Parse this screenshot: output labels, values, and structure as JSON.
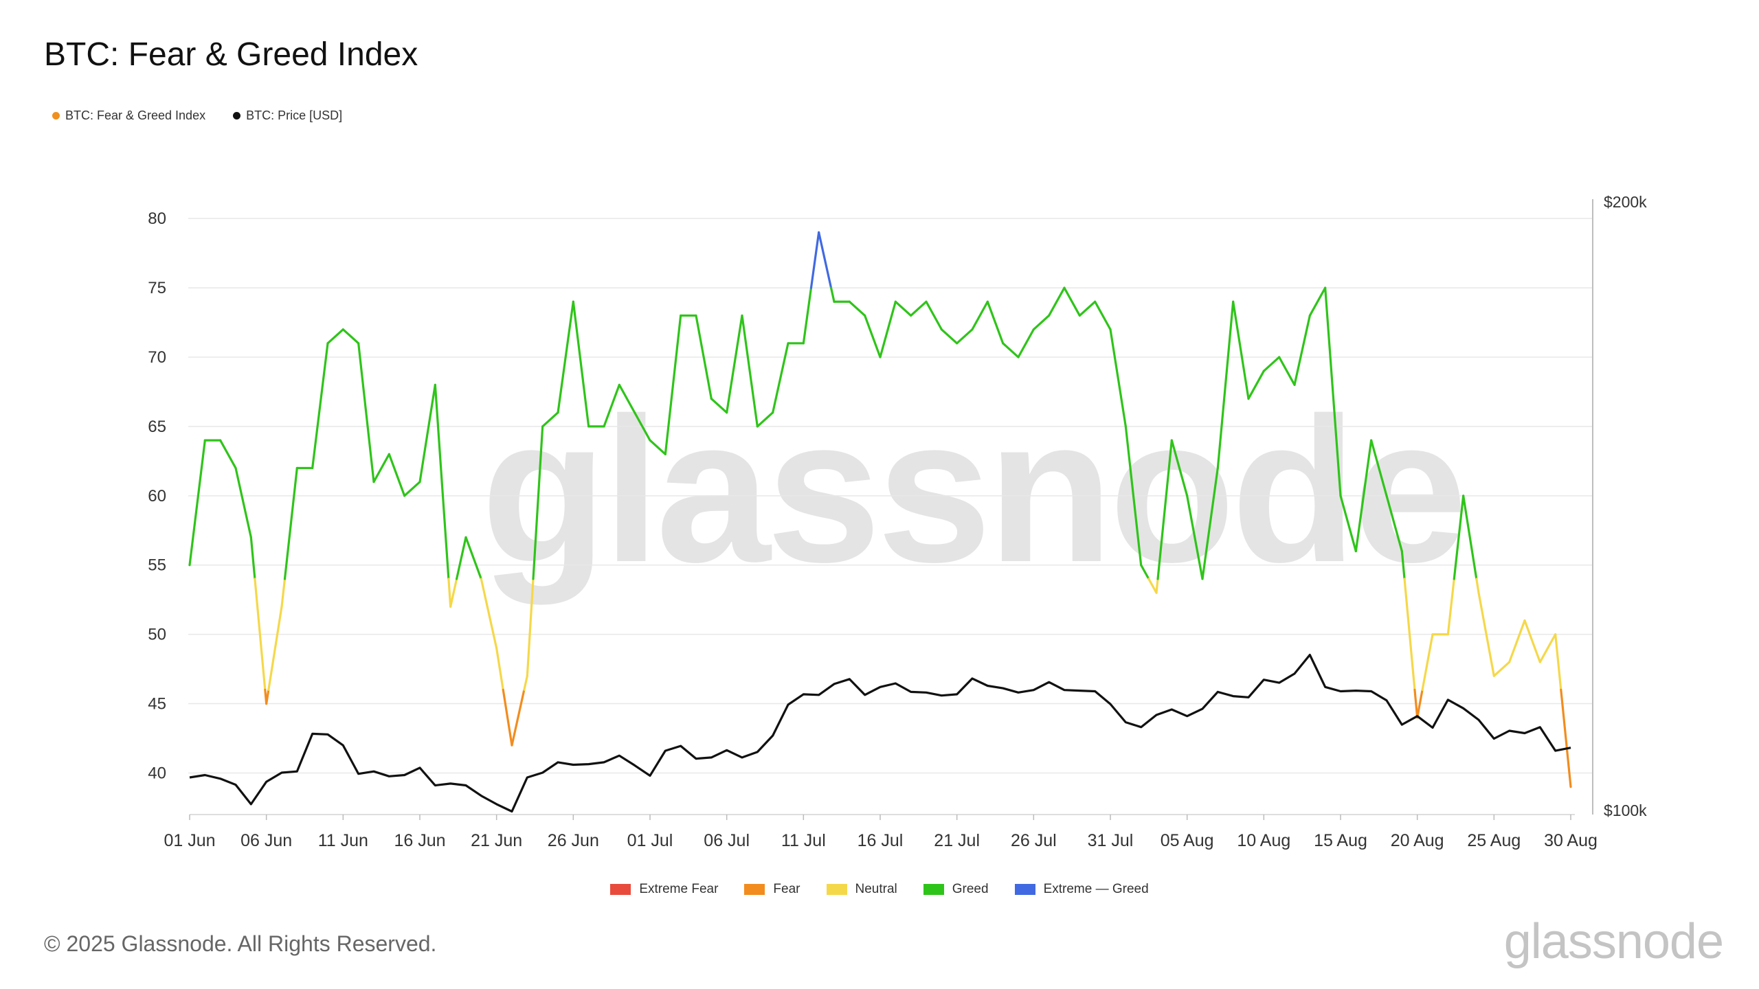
{
  "title": "BTC: Fear & Greed Index",
  "legend": [
    {
      "label": "BTC: Fear & Greed Index",
      "color": "#f0901e"
    },
    {
      "label": "BTC: Price [USD]",
      "color": "#111111"
    }
  ],
  "zone_legend": [
    {
      "label": "Extreme Fear",
      "color": "#e84b3c"
    },
    {
      "label": "Fear",
      "color": "#f28c1e"
    },
    {
      "label": "Neutral",
      "color": "#f5d84a"
    },
    {
      "label": "Greed",
      "color": "#2fc41a"
    },
    {
      "label": "Extreme — Greed",
      "color": "#4169e1"
    }
  ],
  "watermark": "glassnode",
  "copyright": "© 2025 Glassnode. All Rights Reserved.",
  "brand": "glassnode",
  "chart_data": {
    "type": "line",
    "x_labels": [
      "01 Jun",
      "06 Jun",
      "11 Jun",
      "16 Jun",
      "21 Jun",
      "26 Jun",
      "01 Jul",
      "06 Jul",
      "11 Jul",
      "16 Jul",
      "21 Jul",
      "26 Jul",
      "31 Jul",
      "05 Aug",
      "10 Aug",
      "15 Aug",
      "20 Aug",
      "25 Aug",
      "30 Aug"
    ],
    "x_label_step_days": 5,
    "y_left": {
      "ticks": [
        40,
        45,
        50,
        55,
        60,
        65,
        70,
        75,
        80
      ],
      "range": [
        37,
        81
      ]
    },
    "y_right": {
      "ticks": [
        "$200k",
        "$100k"
      ],
      "range": [
        100000,
        200000
      ]
    },
    "zones": [
      {
        "name": "Extreme Fear",
        "min": 0,
        "max": 25,
        "color": "#e84b3c"
      },
      {
        "name": "Fear",
        "min": 25,
        "max": 46,
        "color": "#f28c1e"
      },
      {
        "name": "Neutral",
        "min": 46,
        "max": 54,
        "color": "#f5d84a"
      },
      {
        "name": "Greed",
        "min": 54,
        "max": 75,
        "color": "#2fc41a"
      },
      {
        "name": "Extreme Greed",
        "min": 75,
        "max": 100,
        "color": "#4169e1"
      }
    ],
    "series": [
      {
        "name": "BTC: Fear & Greed Index",
        "axis": "left",
        "values": [
          55,
          64,
          64,
          62,
          57,
          45,
          52,
          62,
          62,
          71,
          72,
          71,
          61,
          63,
          60,
          61,
          68,
          52,
          57,
          54,
          49,
          42,
          47,
          65,
          66,
          74,
          65,
          65,
          68,
          66,
          64,
          63,
          73,
          73,
          67,
          66,
          73,
          65,
          66,
          71,
          71,
          79,
          74,
          74,
          73,
          70,
          74,
          73,
          74,
          72,
          71,
          72,
          74,
          71,
          70,
          72,
          73,
          75,
          73,
          74,
          72,
          65,
          55,
          53,
          64,
          60,
          54,
          62,
          74,
          67,
          69,
          70,
          68,
          73,
          75,
          60,
          56,
          64,
          60,
          56,
          44,
          50,
          50,
          60,
          53,
          47,
          48,
          51,
          48,
          50,
          39
        ]
      },
      {
        "name": "BTC: Price [USD]",
        "axis": "right",
        "values": [
          105200,
          105600,
          105000,
          104000,
          100800,
          104500,
          106000,
          106200,
          112400,
          112300,
          110500,
          105800,
          106200,
          105400,
          105600,
          106800,
          103900,
          104200,
          103900,
          102200,
          100800,
          99600,
          105200,
          106000,
          107700,
          107300,
          107400,
          107700,
          108800,
          107200,
          105500,
          109600,
          110400,
          108300,
          108500,
          109700,
          108500,
          109400,
          112100,
          117200,
          118900,
          118800,
          120600,
          121400,
          118800,
          120100,
          120700,
          119300,
          119200,
          118700,
          118900,
          121500,
          120300,
          119900,
          119200,
          119600,
          120900,
          119600,
          119500,
          119400,
          117300,
          114300,
          113500,
          115500,
          116400,
          115300,
          116500,
          119300,
          118600,
          118400,
          121300,
          120800,
          122300,
          125400,
          120100,
          119400,
          119500,
          119400,
          117900,
          113900,
          115300,
          113400,
          118000,
          116600,
          114700,
          111600,
          112900,
          112500,
          113500,
          109600,
          110100
        ]
      }
    ],
    "grid": true
  }
}
